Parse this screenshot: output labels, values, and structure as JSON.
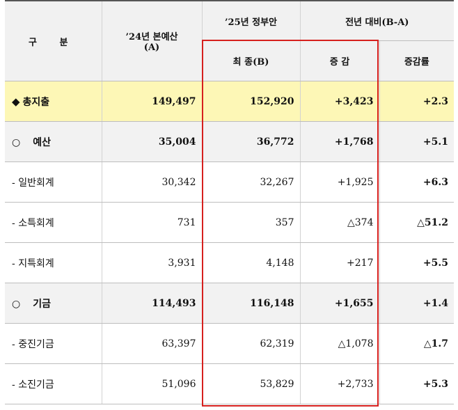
{
  "header": {
    "gubun": "구 분",
    "col_2024": "’24년 본예산",
    "col_2024_sub": "(A)",
    "col_2025": "’25년 정부안",
    "col_diff": "전년 대비(B-A)",
    "sub_final": "최 종(B)",
    "sub_change": "증 감",
    "sub_rate": "증감률"
  },
  "rows": [
    {
      "marker": "◆",
      "label": "총지출",
      "a": "149,497",
      "b": "152,920",
      "change": "+3,423",
      "rate": "+2.3"
    },
    {
      "marker": "○",
      "label": "예산",
      "a": "35,004",
      "b": "36,772",
      "change": "+1,768",
      "rate": "+5.1"
    },
    {
      "marker": "-",
      "label": "일반회계",
      "a": "30,342",
      "b": "32,267",
      "change": "+1,925",
      "rate": "+6.3"
    },
    {
      "marker": "-",
      "label": "소특회계",
      "a": "731",
      "b": "357",
      "change": "△374",
      "rate": "△51.2"
    },
    {
      "marker": "-",
      "label": "지특회계",
      "a": "3,931",
      "b": "4,148",
      "change": "+217",
      "rate": "+5.5"
    },
    {
      "marker": "○",
      "label": "기금",
      "a": "114,493",
      "b": "116,148",
      "change": "+1,655",
      "rate": "+1.4"
    },
    {
      "marker": "-",
      "label": "중진기금",
      "a": "63,397",
      "b": "62,319",
      "change": "△1,078",
      "rate": "△1.7"
    },
    {
      "marker": "-",
      "label": "소진기금",
      "a": "51,096",
      "b": "53,829",
      "change": "+2,733",
      "rate": "+5.3"
    }
  ],
  "colors": {
    "total_row_bg": "#fdf7b6",
    "group_row_bg": "#f2f2f2",
    "header_bg": "#f1f1f1",
    "highlight_box": "#d6201e"
  }
}
